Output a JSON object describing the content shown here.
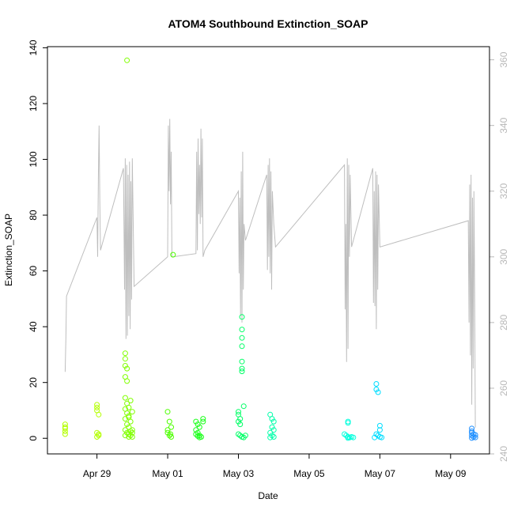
{
  "chart_data": {
    "type": "scatter",
    "title": "ATOM4 Southbound Extinction_SOAP",
    "xlabel": "Date",
    "ylabel": "Extinction_SOAP",
    "x_axis": {
      "ticks": [
        {
          "label": "Apr 29",
          "value": 29.0
        },
        {
          "label": "May 01",
          "value": 31.0
        },
        {
          "label": "May 03",
          "value": 33.0
        },
        {
          "label": "May 05",
          "value": 35.0
        },
        {
          "label": "May 07",
          "value": 37.0
        },
        {
          "label": "May 09",
          "value": 39.0
        }
      ],
      "xlim": [
        27.6,
        40.1
      ]
    },
    "y_axis": {
      "ticks": [
        0,
        20,
        40,
        60,
        80,
        100,
        120,
        140
      ],
      "ylim": [
        -5.6,
        140.4
      ]
    },
    "y2_axis": {
      "ticks": [
        240,
        260,
        280,
        300,
        320,
        340,
        360
      ],
      "ylim": [
        240.0,
        364.0
      ],
      "color": "#b8b8b8"
    },
    "grid": false,
    "legend": "none",
    "point_colors": [
      "#b3ff00",
      "#80ff00",
      "#4dff00",
      "#1aff1a",
      "#00ff66",
      "#00ffaa",
      "#00ffdd",
      "#00ddff",
      "#00bbff",
      "#1e8fff"
    ],
    "series": [
      {
        "kind": "points",
        "points": [
          [
            28.1,
            5
          ],
          [
            28.1,
            3.5
          ],
          [
            28.1,
            2.5
          ],
          [
            28.1,
            1.5
          ],
          [
            28.1,
            4
          ],
          [
            29.0,
            12
          ],
          [
            29.0,
            11
          ],
          [
            29.0,
            10
          ],
          [
            29.05,
            8.5
          ],
          [
            29.0,
            2
          ],
          [
            29.05,
            1
          ],
          [
            29.0,
            0.5
          ],
          [
            29.05,
            1.5
          ],
          [
            29.8,
            30.5
          ],
          [
            29.8,
            28.5
          ],
          [
            29.8,
            26
          ],
          [
            29.85,
            25
          ],
          [
            29.8,
            22
          ],
          [
            29.85,
            20.5
          ],
          [
            29.8,
            14.5
          ],
          [
            29.85,
            12.5
          ],
          [
            29.9,
            11
          ],
          [
            29.8,
            10.5
          ],
          [
            29.85,
            9
          ],
          [
            29.9,
            8
          ],
          [
            29.8,
            7
          ],
          [
            29.95,
            6
          ],
          [
            29.85,
            5
          ],
          [
            29.9,
            4
          ],
          [
            29.8,
            3
          ],
          [
            29.95,
            2.5
          ],
          [
            29.85,
            2
          ],
          [
            29.9,
            1.5
          ],
          [
            29.8,
            1
          ],
          [
            30.0,
            0.5
          ],
          [
            29.95,
            13.5
          ],
          [
            30.0,
            9.5
          ],
          [
            29.9,
            7.5
          ],
          [
            30.0,
            3
          ],
          [
            29.95,
            1
          ],
          [
            30.0,
            2
          ],
          [
            29.9,
            0.5
          ],
          [
            29.85,
            135.5
          ],
          [
            31.0,
            9.5
          ],
          [
            31.05,
            6
          ],
          [
            31.1,
            4
          ],
          [
            31.0,
            2
          ],
          [
            31.05,
            1
          ],
          [
            31.1,
            0.5
          ],
          [
            31.15,
            65.8
          ],
          [
            31.0,
            3
          ],
          [
            31.08,
            1.5
          ],
          [
            31.8,
            6
          ],
          [
            31.85,
            5
          ],
          [
            31.9,
            4
          ],
          [
            31.8,
            3
          ],
          [
            31.85,
            2
          ],
          [
            31.9,
            1
          ],
          [
            31.95,
            0.5
          ],
          [
            31.8,
            1.5
          ],
          [
            31.9,
            0.3
          ],
          [
            32.0,
            7
          ],
          [
            32.0,
            6
          ],
          [
            31.85,
            0.8
          ],
          [
            33.0,
            9.5
          ],
          [
            33.0,
            8.5
          ],
          [
            33.05,
            7
          ],
          [
            33.0,
            6
          ],
          [
            33.05,
            5
          ],
          [
            33.1,
            43.5
          ],
          [
            33.1,
            39
          ],
          [
            33.1,
            36
          ],
          [
            33.1,
            33
          ],
          [
            33.1,
            27.5
          ],
          [
            33.1,
            25
          ],
          [
            33.1,
            24
          ],
          [
            33.15,
            11.5
          ],
          [
            33.0,
            1.5
          ],
          [
            33.05,
            1
          ],
          [
            33.1,
            0.5
          ],
          [
            33.15,
            0.3
          ],
          [
            33.2,
            1
          ],
          [
            33.9,
            8.5
          ],
          [
            33.95,
            7
          ],
          [
            34.0,
            6
          ],
          [
            33.95,
            4
          ],
          [
            34.0,
            3
          ],
          [
            33.9,
            2
          ],
          [
            33.95,
            1
          ],
          [
            34.0,
            0.5
          ],
          [
            33.9,
            0.3
          ],
          [
            36.1,
            6
          ],
          [
            36.1,
            5.5
          ],
          [
            36.0,
            1.5
          ],
          [
            36.05,
            1
          ],
          [
            36.1,
            0.5
          ],
          [
            36.15,
            0.3
          ],
          [
            36.2,
            0.5
          ],
          [
            36.25,
            0.3
          ],
          [
            36.1,
            0.1
          ],
          [
            36.9,
            19.5
          ],
          [
            36.9,
            17.5
          ],
          [
            36.95,
            16.5
          ],
          [
            37.0,
            4.5
          ],
          [
            37.0,
            3
          ],
          [
            36.9,
            1.5
          ],
          [
            36.95,
            1
          ],
          [
            37.0,
            0.5
          ],
          [
            36.85,
            0.3
          ],
          [
            37.05,
            0.3
          ],
          [
            39.6,
            3.5
          ],
          [
            39.6,
            2.5
          ],
          [
            39.6,
            2
          ],
          [
            39.65,
            1.5
          ],
          [
            39.6,
            1
          ],
          [
            39.65,
            0.5
          ],
          [
            39.7,
            0.3
          ],
          [
            39.7,
            1.2
          ],
          [
            39.6,
            0.1
          ]
        ]
      },
      {
        "kind": "line",
        "axis": "y2",
        "color": "#bebebe",
        "points": [
          [
            28.1,
            265
          ],
          [
            28.12,
            275
          ],
          [
            28.14,
            288
          ],
          [
            29.0,
            312
          ],
          [
            29.02,
            300
          ],
          [
            29.04,
            324
          ],
          [
            29.06,
            340
          ],
          [
            29.08,
            317
          ],
          [
            29.1,
            302
          ],
          [
            29.75,
            327
          ],
          [
            29.78,
            290
          ],
          [
            29.8,
            330
          ],
          [
            29.82,
            275
          ],
          [
            29.84,
            328
          ],
          [
            29.86,
            276
          ],
          [
            29.88,
            325
          ],
          [
            29.9,
            282
          ],
          [
            29.92,
            329
          ],
          [
            29.94,
            278
          ],
          [
            29.96,
            323
          ],
          [
            29.98,
            287
          ],
          [
            30.0,
            330
          ],
          [
            30.05,
            291
          ],
          [
            31.0,
            300
          ],
          [
            31.02,
            340
          ],
          [
            31.04,
            320
          ],
          [
            31.06,
            342
          ],
          [
            31.08,
            316
          ],
          [
            31.1,
            332
          ],
          [
            31.12,
            300
          ],
          [
            31.15,
            300
          ],
          [
            31.8,
            301
          ],
          [
            31.82,
            332
          ],
          [
            31.84,
            302
          ],
          [
            31.86,
            336
          ],
          [
            31.88,
            313
          ],
          [
            31.9,
            328
          ],
          [
            31.92,
            310
          ],
          [
            31.94,
            339
          ],
          [
            31.96,
            312
          ],
          [
            31.98,
            336
          ],
          [
            32.0,
            300
          ],
          [
            32.05,
            302
          ],
          [
            33.0,
            320
          ],
          [
            33.02,
            295
          ],
          [
            33.04,
            318
          ],
          [
            33.06,
            282
          ],
          [
            33.08,
            326
          ],
          [
            33.1,
            280
          ],
          [
            33.12,
            332
          ],
          [
            33.14,
            290
          ],
          [
            33.16,
            310
          ],
          [
            33.2,
            305
          ],
          [
            33.8,
            325
          ],
          [
            33.82,
            296
          ],
          [
            33.84,
            328
          ],
          [
            33.86,
            300
          ],
          [
            33.88,
            330
          ],
          [
            33.9,
            295
          ],
          [
            33.92,
            326
          ],
          [
            33.94,
            290
          ],
          [
            33.96,
            320
          ],
          [
            34.0,
            310
          ],
          [
            34.05,
            303
          ],
          [
            36.0,
            328
          ],
          [
            36.02,
            284
          ],
          [
            36.04,
            310
          ],
          [
            36.06,
            268
          ],
          [
            36.08,
            330
          ],
          [
            36.1,
            272
          ],
          [
            36.12,
            328
          ],
          [
            36.14,
            300
          ],
          [
            36.16,
            325
          ],
          [
            36.2,
            303
          ],
          [
            36.8,
            327
          ],
          [
            36.82,
            286
          ],
          [
            36.84,
            320
          ],
          [
            36.86,
            285
          ],
          [
            36.88,
            326
          ],
          [
            36.9,
            278
          ],
          [
            36.92,
            325
          ],
          [
            36.94,
            290
          ],
          [
            36.96,
            322
          ],
          [
            37.0,
            303
          ],
          [
            39.5,
            311
          ],
          [
            39.52,
            280
          ],
          [
            39.54,
            322
          ],
          [
            39.56,
            270
          ],
          [
            39.58,
            325
          ],
          [
            39.6,
            255
          ],
          [
            39.62,
            318
          ],
          [
            39.64,
            266
          ],
          [
            39.66,
            320
          ],
          [
            39.68,
            290
          ],
          [
            39.7,
            248
          ]
        ]
      }
    ]
  }
}
